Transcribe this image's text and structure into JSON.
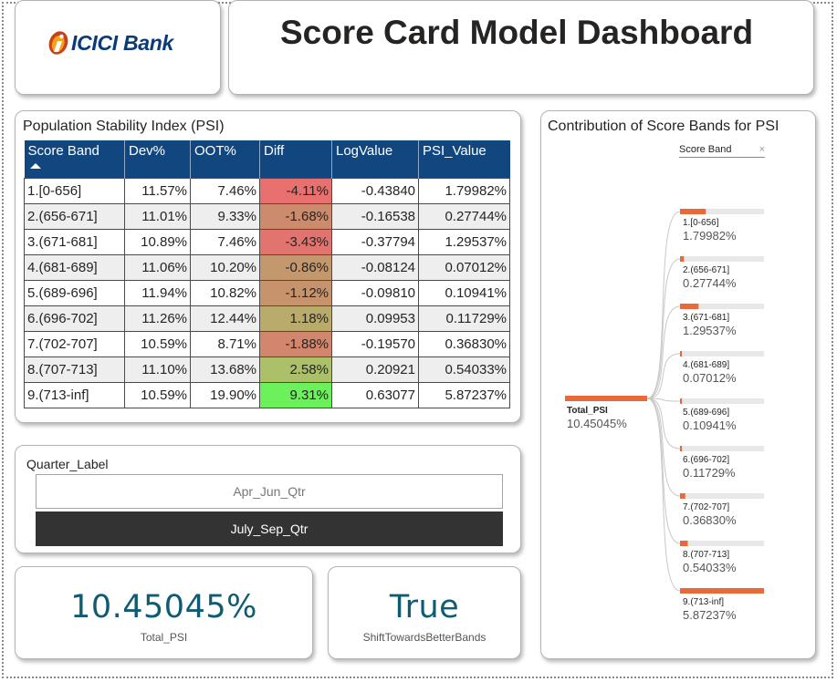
{
  "header": {
    "brand": "ICICI Bank",
    "title": "Score Card Model Dashboard"
  },
  "psi_table": {
    "title": "Population Stability Index (PSI)",
    "columns": [
      "Score Band",
      "Dev%",
      "OOT%",
      "Diff",
      "LogValue",
      "PSI_Value"
    ],
    "rows": [
      {
        "band": "1.[0-656]",
        "dev": "11.57%",
        "oot": "7.46%",
        "diff": "-4.11%",
        "log": "-0.43840",
        "psi": "1.79982%",
        "diff_color": "#e8706f"
      },
      {
        "band": "2.(656-671]",
        "dev": "11.01%",
        "oot": "9.33%",
        "diff": "-1.68%",
        "log": "-0.16538",
        "psi": "0.27744%",
        "diff_color": "#cc8b6d"
      },
      {
        "band": "3.(671-681]",
        "dev": "10.89%",
        "oot": "7.46%",
        "diff": "-3.43%",
        "log": "-0.37794",
        "psi": "1.29537%",
        "diff_color": "#e2746f"
      },
      {
        "band": "4.(681-689]",
        "dev": "11.06%",
        "oot": "10.20%",
        "diff": "-0.86%",
        "log": "-0.08124",
        "psi": "0.07012%",
        "diff_color": "#c3986d"
      },
      {
        "band": "5.(689-696]",
        "dev": "11.94%",
        "oot": "10.82%",
        "diff": "-1.12%",
        "log": "-0.09810",
        "psi": "0.10941%",
        "diff_color": "#c6936d"
      },
      {
        "band": "6.(696-702]",
        "dev": "11.26%",
        "oot": "12.44%",
        "diff": "1.18%",
        "log": "0.09953",
        "psi": "0.11729%",
        "diff_color": "#b8ab6c"
      },
      {
        "band": "7.(702-707]",
        "dev": "10.59%",
        "oot": "8.71%",
        "diff": "-1.88%",
        "log": "-0.19570",
        "psi": "0.36830%",
        "diff_color": "#d3866e"
      },
      {
        "band": "8.(707-713]",
        "dev": "11.10%",
        "oot": "13.68%",
        "diff": "2.58%",
        "log": "0.20921",
        "psi": "0.54033%",
        "diff_color": "#acbf69"
      },
      {
        "band": "9.(713-inf]",
        "dev": "10.59%",
        "oot": "19.90%",
        "diff": "9.31%",
        "log": "0.63077",
        "psi": "5.87237%",
        "diff_color": "#6cf05c"
      }
    ]
  },
  "slicer": {
    "title": "Quarter_Label",
    "options": [
      {
        "label": "Apr_Jun_Qtr",
        "selected": false
      },
      {
        "label": "July_Sep_Qtr",
        "selected": true
      }
    ]
  },
  "kpis": [
    {
      "value": "10.45045%",
      "label": "Total_PSI"
    },
    {
      "value": "True",
      "label": "ShiftTowardsBetterBands"
    }
  ],
  "tree": {
    "title": "Contribution of Score Bands for PSI",
    "filter_label": "Score Band",
    "bar_color": "#e8693a",
    "track_color": "#e8e8e8",
    "root": {
      "name": "Total_PSI",
      "value": "10.45045%",
      "share": 1.0
    },
    "nodes": [
      {
        "name": "1.[0-656]",
        "value": "1.79982%",
        "share": 0.3065
      },
      {
        "name": "2.(656-671]",
        "value": "0.27744%",
        "share": 0.0472
      },
      {
        "name": "3.(671-681]",
        "value": "1.29537%",
        "share": 0.2206
      },
      {
        "name": "4.(681-689]",
        "value": "0.07012%",
        "share": 0.0119
      },
      {
        "name": "5.(689-696]",
        "value": "0.10941%",
        "share": 0.0186
      },
      {
        "name": "6.(696-702]",
        "value": "0.11729%",
        "share": 0.02
      },
      {
        "name": "7.(702-707]",
        "value": "0.36830%",
        "share": 0.0627
      },
      {
        "name": "8.(707-713]",
        "value": "0.54033%",
        "share": 0.092
      },
      {
        "name": "9.(713-inf]",
        "value": "5.87237%",
        "share": 1.0
      }
    ]
  }
}
